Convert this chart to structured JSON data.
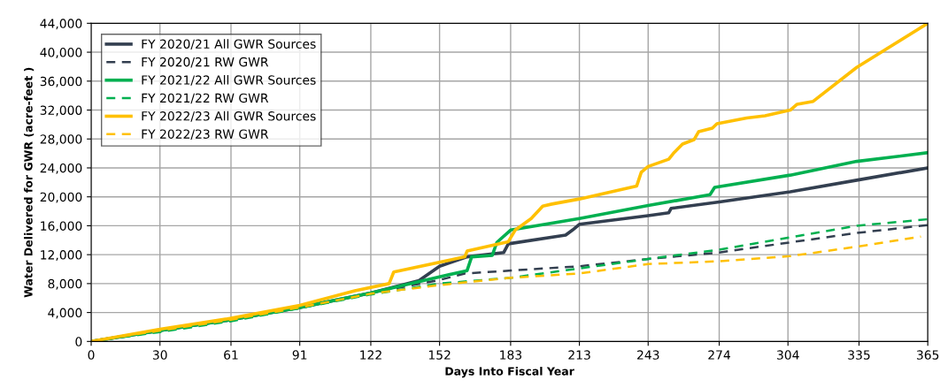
{
  "chart_data": {
    "type": "line",
    "xlabel": "Days Into Fiscal Year",
    "ylabel": "Water Delivered for GWR (acre-feet )",
    "xlim": [
      0,
      365
    ],
    "xticks": [
      0,
      30,
      61,
      91,
      122,
      152,
      183,
      213,
      243,
      274,
      304,
      335,
      365
    ],
    "ylim": [
      0,
      44000
    ],
    "yticks": [
      {
        "value": 0,
        "label": "0"
      },
      {
        "value": 4000,
        "label": "4,000"
      },
      {
        "value": 8000,
        "label": "8,000"
      },
      {
        "value": 12000,
        "label": "12,000"
      },
      {
        "value": 16000,
        "label": "16,000"
      },
      {
        "value": 20000,
        "label": "20,000"
      },
      {
        "value": 24000,
        "label": "24,000"
      },
      {
        "value": 28000,
        "label": "28,000"
      },
      {
        "value": 32000,
        "label": "32,000"
      },
      {
        "value": 36000,
        "label": "36,000"
      },
      {
        "value": 40000,
        "label": "40,000"
      },
      {
        "value": 44000,
        "label": "44,000"
      }
    ],
    "grid": true,
    "legend": "top left",
    "marker": "none",
    "series": [
      {
        "name": "FY 2020/21 All GWR Sources",
        "color": "#333f50",
        "line_style": "solid",
        "x": [
          0,
          30,
          61,
          91,
          122,
          143,
          152,
          164,
          180,
          182,
          207,
          210,
          213,
          243,
          252,
          253,
          274,
          305,
          334,
          365
        ],
        "values": [
          0,
          1500,
          3000,
          4700,
          6700,
          8400,
          10400,
          11700,
          12300,
          13500,
          14700,
          15400,
          16200,
          17400,
          17800,
          18400,
          19300,
          20700,
          22300,
          24000
        ]
      },
      {
        "name": "FY 2020/21 RW GWR",
        "color": "#333f50",
        "line_style": "dashed",
        "x": [
          0,
          30,
          61,
          91,
          122,
          152,
          163,
          213,
          243,
          274,
          305,
          334,
          365
        ],
        "values": [
          0,
          1500,
          3000,
          4700,
          6700,
          8500,
          9400,
          10400,
          11400,
          12300,
          13700,
          15000,
          16100
        ]
      },
      {
        "name": "FY 2021/22 All GWR Sources",
        "color": "#00b050",
        "line_style": "solid",
        "x": [
          0,
          30,
          61,
          91,
          122,
          142,
          164,
          166,
          175,
          177,
          183,
          213,
          243,
          270,
          272,
          305,
          334,
          365
        ],
        "values": [
          0,
          1500,
          3000,
          4700,
          6700,
          8200,
          9800,
          11700,
          11900,
          13700,
          15400,
          17000,
          18800,
          20300,
          21300,
          23000,
          24900,
          26100
        ]
      },
      {
        "name": "FY 2021/22 RW GWR",
        "color": "#00b050",
        "line_style": "dashed",
        "x": [
          0,
          30,
          61,
          91,
          122,
          152,
          183,
          243,
          274,
          305,
          334,
          365
        ],
        "values": [
          0,
          1300,
          2800,
          4600,
          6500,
          8000,
          8800,
          11400,
          12700,
          14400,
          16000,
          16900
        ]
      },
      {
        "name": "FY 2022/23 All GWR Sources",
        "color": "#ffc000",
        "line_style": "solid",
        "x": [
          0,
          30,
          61,
          91,
          115,
          130,
          132,
          163,
          164,
          182,
          185,
          192,
          197,
          201,
          213,
          238,
          240,
          243,
          252,
          254,
          258,
          263,
          265,
          271,
          273,
          286,
          294,
          305,
          308,
          315,
          334,
          365
        ],
        "values": [
          0,
          1700,
          3200,
          5000,
          7000,
          8000,
          9600,
          11700,
          12500,
          13800,
          15400,
          17000,
          18700,
          19000,
          19700,
          21500,
          23400,
          24200,
          25200,
          26000,
          27300,
          27900,
          29000,
          29500,
          30100,
          30900,
          31200,
          32000,
          32800,
          33200,
          37900,
          44000
        ]
      },
      {
        "name": "FY 2022/23 RW GWR",
        "color": "#ffc000",
        "line_style": "dashed",
        "x": [
          0,
          30,
          61,
          91,
          122,
          152,
          183,
          213,
          243,
          274,
          305,
          334,
          362
        ],
        "values": [
          0,
          1500,
          3000,
          4700,
          6600,
          7800,
          8800,
          9400,
          10700,
          11100,
          11800,
          13100,
          14500
        ]
      }
    ]
  }
}
